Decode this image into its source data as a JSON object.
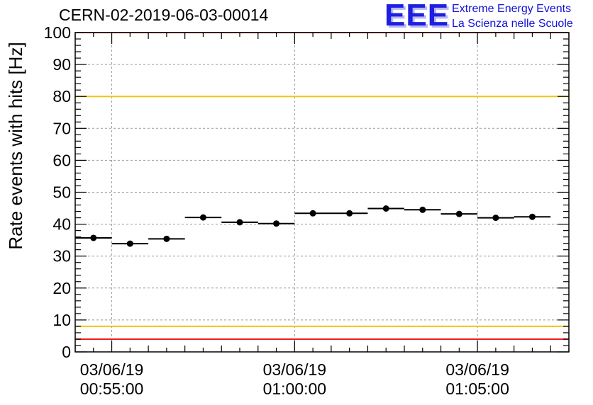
{
  "header": {
    "run_title": "CERN-02-2019-06-03-00014",
    "logo_mark": "EEE",
    "logo_line1": "Extreme Energy Events",
    "logo_line2": "La Scienza nelle Scuole"
  },
  "colors": {
    "red_limit": "#ee1c1c",
    "yellow_limit": "#f2c40f",
    "marker": "#000000",
    "grid": "#9a9a9a",
    "logo": "#1f1fe0"
  },
  "chart_data": {
    "type": "scatter",
    "title": "",
    "xlabel": "",
    "ylabel": "Rate events with hits [Hz]",
    "ylim": [
      0,
      100
    ],
    "yticks": [
      "0",
      "10",
      "20",
      "30",
      "40",
      "50",
      "60",
      "70",
      "80",
      "90",
      "100"
    ],
    "xlim": [
      "03/06/19 00:54:00",
      "03/06/19 01:07:30"
    ],
    "xticks": [
      {
        "x": "03/06/19 00:55:00",
        "date": "03/06/19",
        "time": "00:55:00"
      },
      {
        "x": "03/06/19 01:00:00",
        "date": "03/06/19",
        "time": "01:00:00"
      },
      {
        "x": "03/06/19 01:05:00",
        "date": "03/06/19",
        "time": "01:05:00"
      }
    ],
    "grid": true,
    "reference_lines": [
      {
        "y": 80,
        "color": "yellow"
      },
      {
        "y": 8,
        "color": "yellow"
      },
      {
        "y": 100,
        "color": "red"
      },
      {
        "y": 4,
        "color": "red"
      }
    ],
    "series": [
      {
        "points": [
          {
            "x_start": "00:54:00",
            "x_end": "00:55:00",
            "y": 35.7
          },
          {
            "x_start": "00:55:00",
            "x_end": "00:56:00",
            "y": 33.9
          },
          {
            "x_start": "00:56:00",
            "x_end": "00:57:00",
            "y": 35.4
          },
          {
            "x_start": "00:57:00",
            "x_end": "00:58:00",
            "y": 42.1
          },
          {
            "x_start": "00:58:00",
            "x_end": "00:59:00",
            "y": 40.6
          },
          {
            "x_start": "00:59:00",
            "x_end": "01:00:00",
            "y": 40.2
          },
          {
            "x_start": "01:00:00",
            "x_end": "01:01:00",
            "y": 43.4
          },
          {
            "x_start": "01:01:00",
            "x_end": "01:02:00",
            "y": 43.4
          },
          {
            "x_start": "01:02:00",
            "x_end": "01:03:00",
            "y": 44.9
          },
          {
            "x_start": "01:03:00",
            "x_end": "01:04:00",
            "y": 44.5
          },
          {
            "x_start": "01:04:00",
            "x_end": "01:05:00",
            "y": 43.2
          },
          {
            "x_start": "01:05:00",
            "x_end": "01:06:00",
            "y": 42.0
          },
          {
            "x_start": "01:06:00",
            "x_end": "01:07:00",
            "y": 42.3
          }
        ]
      }
    ]
  }
}
